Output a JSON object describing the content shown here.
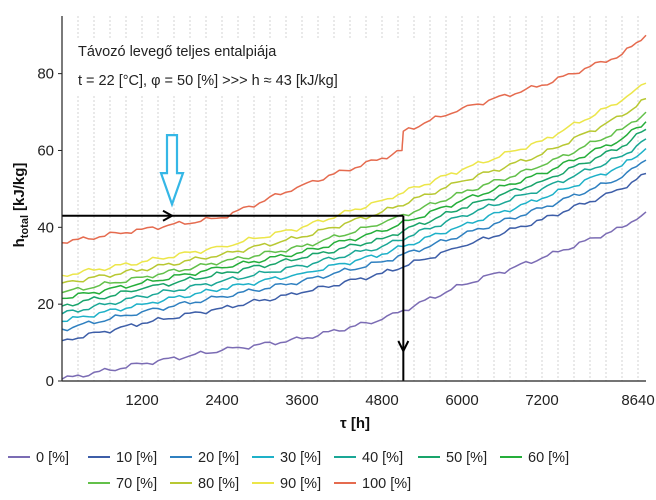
{
  "chart_data": {
    "type": "line",
    "xlabel": "τ [h]",
    "ylabel_main": "h",
    "ylabel_sub": "total",
    "ylabel_unit": "[kJ/kg]",
    "xlim": [
      0,
      8760
    ],
    "ylim": [
      0,
      95
    ],
    "xticks": [
      1200,
      2400,
      3600,
      4800,
      6000,
      7200,
      8640
    ],
    "yticks": [
      0,
      20,
      40,
      60,
      80
    ],
    "grid": "vertical-dashed",
    "annotation": {
      "line1": "Távozó levegő teljes entalpiája",
      "line2": "t = 22 [°C], φ = 50 [%] >>> h ≈ 43 [kJ/kg]"
    },
    "reference": {
      "h": 43,
      "tau": 5120
    },
    "arrow_marker": {
      "tau": 1650,
      "h_top": 64,
      "h_bottom": 46,
      "color": "#35b7e6"
    },
    "legend_position": "bottom",
    "series": [
      {
        "name": "0 [%]",
        "color": "#7b6cb4",
        "points": [
          [
            0,
            0.5
          ],
          [
            1200,
            4.5
          ],
          [
            2400,
            8
          ],
          [
            3600,
            11
          ],
          [
            4800,
            16
          ],
          [
            6000,
            25
          ],
          [
            7200,
            32
          ],
          [
            8400,
            40
          ],
          [
            8760,
            44
          ]
        ]
      },
      {
        "name": "10 [%]",
        "color": "#3d5ea8",
        "points": [
          [
            0,
            10.5
          ],
          [
            1200,
            15
          ],
          [
            2400,
            19
          ],
          [
            3600,
            23
          ],
          [
            4800,
            28
          ],
          [
            6000,
            35
          ],
          [
            7200,
            42
          ],
          [
            8400,
            50
          ],
          [
            8760,
            54
          ]
        ]
      },
      {
        "name": "20 [%]",
        "color": "#2f80c0",
        "points": [
          [
            0,
            13.5
          ],
          [
            1200,
            18
          ],
          [
            2400,
            22
          ],
          [
            3600,
            26
          ],
          [
            4800,
            31
          ],
          [
            6000,
            38
          ],
          [
            7200,
            45
          ],
          [
            8400,
            53
          ],
          [
            8760,
            57.5
          ]
        ]
      },
      {
        "name": "30 [%]",
        "color": "#1eb1c8",
        "points": [
          [
            0,
            15.5
          ],
          [
            1200,
            20
          ],
          [
            2400,
            24
          ],
          [
            3600,
            28
          ],
          [
            4800,
            33
          ],
          [
            6000,
            40.5
          ],
          [
            7200,
            47.5
          ],
          [
            8400,
            56
          ],
          [
            8760,
            60.5
          ]
        ]
      },
      {
        "name": "40 [%]",
        "color": "#1aa796",
        "points": [
          [
            0,
            17.5
          ],
          [
            1200,
            22
          ],
          [
            2400,
            26
          ],
          [
            3600,
            30
          ],
          [
            4800,
            35
          ],
          [
            6000,
            43
          ],
          [
            7200,
            50
          ],
          [
            8400,
            58.5
          ],
          [
            8760,
            63
          ]
        ]
      },
      {
        "name": "50 [%]",
        "color": "#19a46b",
        "points": [
          [
            0,
            19.5
          ],
          [
            1200,
            24
          ],
          [
            2400,
            28
          ],
          [
            3600,
            32
          ],
          [
            4800,
            37
          ],
          [
            6000,
            45
          ],
          [
            7200,
            52
          ],
          [
            8400,
            61
          ],
          [
            8760,
            65.5
          ]
        ]
      },
      {
        "name": "60 [%]",
        "color": "#25ae3a",
        "points": [
          [
            0,
            21.5
          ],
          [
            1200,
            25.5
          ],
          [
            2400,
            29.5
          ],
          [
            3600,
            33.5
          ],
          [
            4800,
            39
          ],
          [
            6000,
            47
          ],
          [
            7200,
            54
          ],
          [
            8400,
            63
          ],
          [
            8760,
            67.5
          ]
        ]
      },
      {
        "name": "70 [%]",
        "color": "#63c04a",
        "points": [
          [
            0,
            23
          ],
          [
            1200,
            27
          ],
          [
            2400,
            31
          ],
          [
            3600,
            35
          ],
          [
            4800,
            41
          ],
          [
            6000,
            49
          ],
          [
            7200,
            56
          ],
          [
            8400,
            65.5
          ],
          [
            8760,
            70
          ]
        ]
      },
      {
        "name": "80 [%]",
        "color": "#b8c832",
        "points": [
          [
            0,
            25.5
          ],
          [
            1200,
            29
          ],
          [
            2400,
            33
          ],
          [
            3600,
            37.5
          ],
          [
            4800,
            44
          ],
          [
            6000,
            52
          ],
          [
            7200,
            59
          ],
          [
            8400,
            69
          ],
          [
            8760,
            73.5
          ]
        ]
      },
      {
        "name": "90 [%]",
        "color": "#ece64a",
        "points": [
          [
            0,
            27.5
          ],
          [
            1200,
            31
          ],
          [
            2400,
            35
          ],
          [
            3600,
            40
          ],
          [
            4800,
            47
          ],
          [
            6000,
            55
          ],
          [
            7200,
            62.5
          ],
          [
            8400,
            73
          ],
          [
            8760,
            77.5
          ]
        ]
      },
      {
        "name": "100 [%]",
        "color": "#e56b4f",
        "points": [
          [
            0,
            36
          ],
          [
            1200,
            39.5
          ],
          [
            2400,
            42.5
          ],
          [
            3600,
            51
          ],
          [
            4800,
            58
          ],
          [
            5100,
            60
          ],
          [
            5120,
            65
          ],
          [
            6000,
            71
          ],
          [
            7200,
            77
          ],
          [
            8400,
            85
          ],
          [
            8760,
            90
          ]
        ]
      }
    ]
  }
}
